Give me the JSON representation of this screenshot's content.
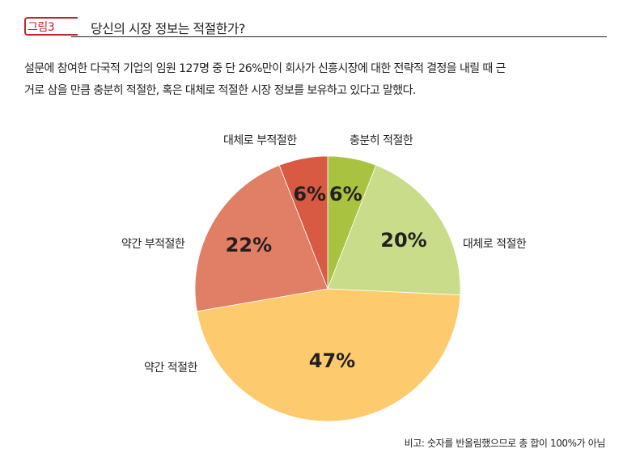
{
  "figure": {
    "tag": "그림3",
    "title": "당신의 시장 정보는 적절한가?"
  },
  "description": {
    "line1": "설문에 참여한 다국적 기업의 임원 127명 중 단 26%만이 회사가 신흥시장에 대한 전략적 결정을 내릴 때 근",
    "line2": "거로 삼을 만큼 충분히 적절한, 혹은 대체로 적절한 시장 정보를 보유하고 있다고 말했다."
  },
  "chart_data": {
    "type": "pie",
    "title": "",
    "unit": "%",
    "slices": [
      {
        "label": "충분히 적절한",
        "value": 6,
        "value_label": "6%",
        "color": "#a9c23f"
      },
      {
        "label": "대체로 적절한",
        "value": 20,
        "value_label": "20%",
        "color": "#c8dc8a"
      },
      {
        "label": "약간 적절한",
        "value": 47,
        "value_label": "47%",
        "color": "#fdcb6e"
      },
      {
        "label": "약간 부적절한",
        "value": 22,
        "value_label": "22%",
        "color": "#e07e66"
      },
      {
        "label": "대체로 부적절한",
        "value": 6,
        "value_label": "6%",
        "color": "#d85a43"
      }
    ],
    "start": "12 o'clock",
    "direction": "clockwise"
  },
  "footnote": "비고: 숫자를 반올림했으므로 총 합이 100%가 아님"
}
